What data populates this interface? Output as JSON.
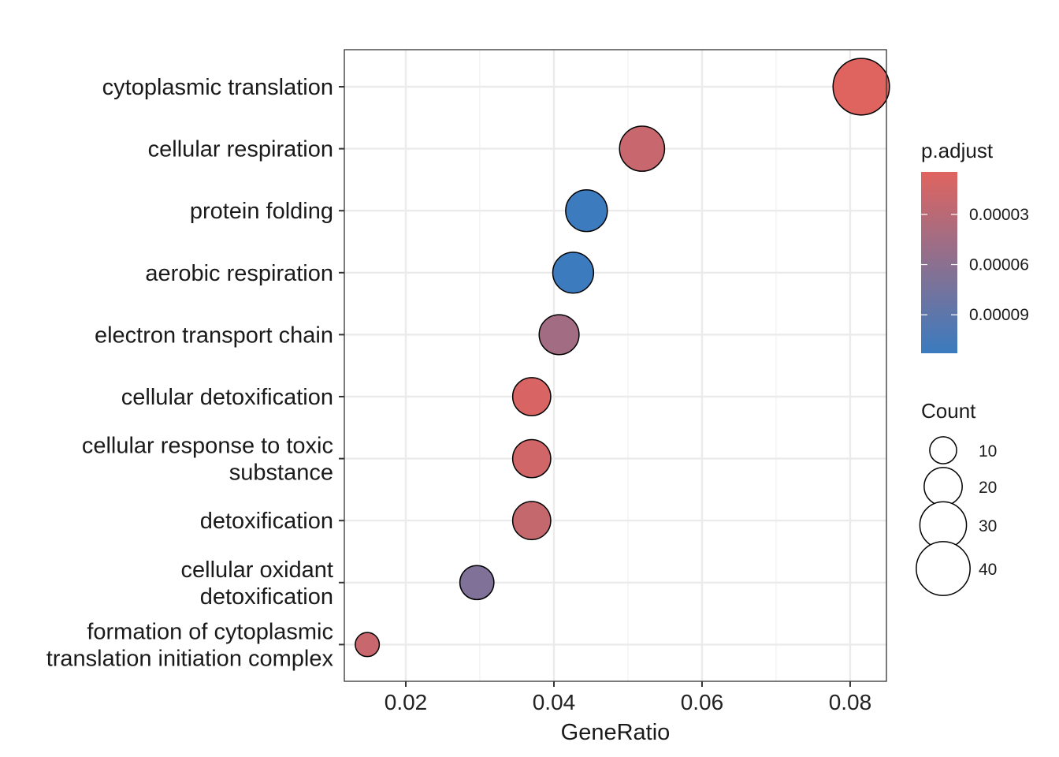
{
  "chart_data": {
    "type": "scatter",
    "title": "",
    "xlabel": "GeneRatio",
    "ylabel": "",
    "xlim": [
      0.0117,
      0.0849
    ],
    "x_ticks": [
      0.02,
      0.04,
      0.06,
      0.08
    ],
    "x_tick_labels": [
      "0.02",
      "0.04",
      "0.06",
      "0.08"
    ],
    "grid": true,
    "legend_placement": "right",
    "categories": [
      {
        "lines": [
          "cytoplasmic translation"
        ]
      },
      {
        "lines": [
          "cellular respiration"
        ]
      },
      {
        "lines": [
          "protein folding"
        ]
      },
      {
        "lines": [
          "aerobic respiration"
        ]
      },
      {
        "lines": [
          "electron transport chain"
        ]
      },
      {
        "lines": [
          "cellular detoxification"
        ]
      },
      {
        "lines": [
          "cellular response to toxic",
          "substance"
        ]
      },
      {
        "lines": [
          "detoxification"
        ]
      },
      {
        "lines": [
          "cellular oxidant",
          "detoxification"
        ]
      },
      {
        "lines": [
          "formation of cytoplasmic",
          "translation initiation complex"
        ]
      }
    ],
    "points": [
      {
        "category": 0,
        "gene_ratio": 0.0815,
        "count": 44,
        "p_adjust": 5e-06
      },
      {
        "category": 1,
        "gene_ratio": 0.0519,
        "count": 28,
        "p_adjust": 2e-05
      },
      {
        "category": 2,
        "gene_ratio": 0.0444,
        "count": 24,
        "p_adjust": 0.000112
      },
      {
        "category": 3,
        "gene_ratio": 0.0426,
        "count": 23,
        "p_adjust": 0.000112
      },
      {
        "category": 4,
        "gene_ratio": 0.0407,
        "count": 22,
        "p_adjust": 4.5e-05
      },
      {
        "category": 5,
        "gene_ratio": 0.037,
        "count": 20,
        "p_adjust": 1e-05
      },
      {
        "category": 6,
        "gene_ratio": 0.037,
        "count": 20,
        "p_adjust": 1.5e-05
      },
      {
        "category": 7,
        "gene_ratio": 0.037,
        "count": 20,
        "p_adjust": 2.2e-05
      },
      {
        "category": 8,
        "gene_ratio": 0.0296,
        "count": 16,
        "p_adjust": 6.8e-05
      },
      {
        "category": 9,
        "gene_ratio": 0.0148,
        "count": 8,
        "p_adjust": 2e-05
      }
    ],
    "color_legend": {
      "title": "p.adjust",
      "range": [
        4.6e-06,
        0.000113
      ],
      "low_color": "#e0645f",
      "high_color": "#3a7bbf",
      "breaks": [
        3e-05,
        6e-05,
        9e-05
      ],
      "break_labels": [
        "0.00003",
        "0.00006",
        "0.00009"
      ]
    },
    "size_legend": {
      "title": "Count",
      "breaks": [
        10,
        20,
        30,
        40
      ],
      "break_labels": [
        "10",
        "20",
        "30",
        "40"
      ]
    }
  }
}
